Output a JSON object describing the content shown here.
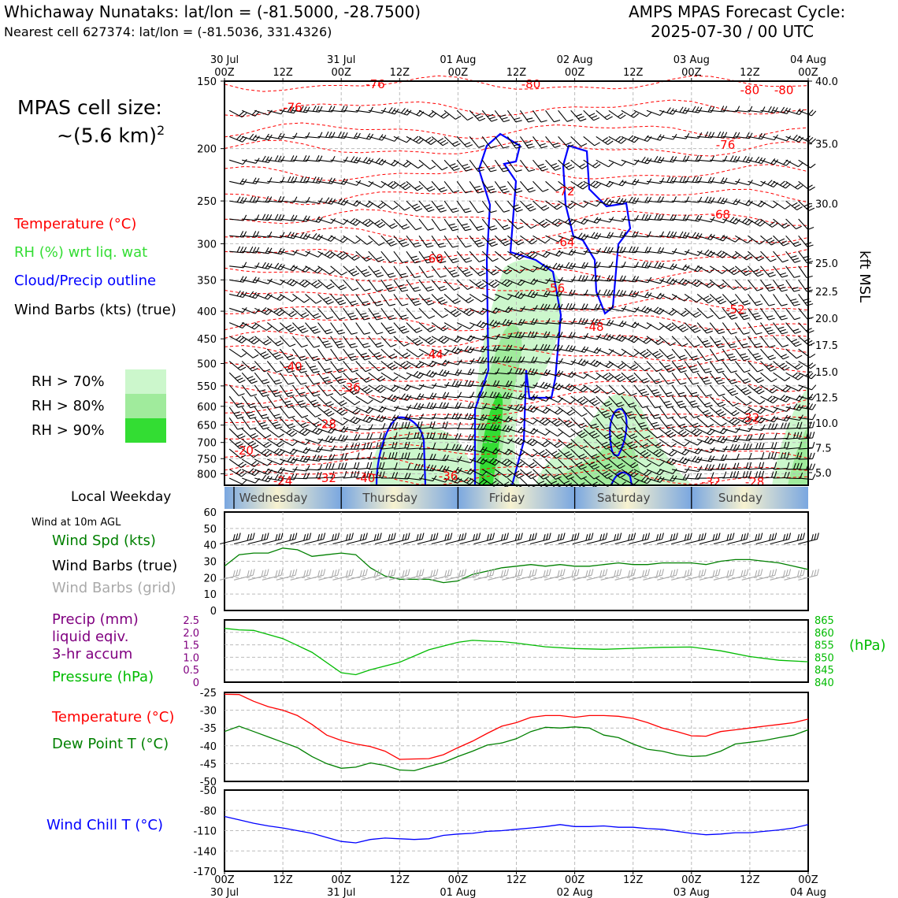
{
  "header": {
    "station": "Whichaway Nunataks: lat/lon = (-81.5000, -28.7500)",
    "nearest": "Nearest cell 627374: lat/lon = (-81.5036, 331.4326)",
    "cycle_line1": "AMPS MPAS Forecast Cycle:",
    "cycle_line2": "2025-07-30 / 00 UTC"
  },
  "legend": {
    "cell_size_line1": "MPAS cell size:",
    "cell_size_line2": "~(5.6 km)",
    "cell_size_exp": "2",
    "temperature": "Temperature (°C)",
    "rh": "RH (%) wrt liq. wat",
    "cloud": "Cloud/Precip outline",
    "barbs": "Wind Barbs (kts) (true)",
    "rh70": "RH > 70%",
    "rh80": "RH > 80%",
    "rh90": "RH > 90%",
    "local_weekday": "Local Weekday",
    "wind10m": "Wind at 10m AGL",
    "wind_spd": "Wind Spd (kts)",
    "wind_barbs_true": "Wind Barbs (true)",
    "wind_barbs_grid": "Wind Barbs (grid)",
    "precip_l1": "Precip (mm)",
    "precip_l2": "liquid eqiv.",
    "precip_l3": "3-hr accum",
    "pressure": "Pressure (hPa)",
    "hpa_unit": "(hPa)",
    "temp2": "Temperature (°C)",
    "dewpoint": "Dew Point T (°C)",
    "windchill": "Wind Chill T (°C)",
    "kft": "kft MSL"
  },
  "colors": {
    "temp": "#ff0000",
    "rh": "#33dd33",
    "cloud": "#0000ff",
    "wind": "#008000",
    "precip": "#800080",
    "pressure": "#00bb00",
    "dew": "#008000",
    "chill": "#0000ff",
    "rh70": "#ccf7cc",
    "rh80": "#a0eb9c",
    "rh90": "#33dd33"
  },
  "time_axis": {
    "hours": [
      0,
      12,
      24,
      36,
      48,
      60,
      72,
      84,
      96,
      108,
      120
    ],
    "top_labels": [
      "00Z",
      "12Z",
      "00Z",
      "12Z",
      "00Z",
      "12Z",
      "00Z",
      "12Z",
      "00Z",
      "12Z",
      "00Z"
    ],
    "date_labels": [
      "30 Jul",
      "",
      "31 Jul",
      "",
      "01 Aug",
      "",
      "02 Aug",
      "",
      "03 Aug",
      "",
      "04 Aug"
    ]
  },
  "weekdays": [
    "Wednesday",
    "Thursday",
    "Friday",
    "Saturday",
    "Sunday"
  ],
  "chart_data": [
    {
      "type": "heatmap",
      "name_shown": "",
      "y_axis_left": "pressure (hPa)",
      "yticks_left": [
        150,
        200,
        250,
        300,
        350,
        400,
        450,
        500,
        550,
        600,
        650,
        700,
        750,
        800
      ],
      "yticks_right": [
        "40.0",
        "35.0",
        "30.0",
        "25.0",
        "22.5",
        "20.0",
        "17.5",
        "15.0",
        "12.5",
        "10.0",
        "7.5",
        "5.0"
      ],
      "yticks_right_pressure": [
        150,
        196,
        253,
        326,
        368,
        412,
        462,
        518,
        578,
        644,
        716,
        796
      ],
      "ylim": [
        840,
        150
      ],
      "temperature_labels": [
        {
          "label": "-76",
          "t": 14,
          "p": 168
        },
        {
          "label": "-76",
          "t": 31,
          "p": 152
        },
        {
          "label": "-80",
          "t": 63,
          "p": 152
        },
        {
          "label": "-80",
          "t": 108,
          "p": 156
        },
        {
          "label": "-80",
          "t": 115,
          "p": 156
        },
        {
          "label": "-76",
          "t": 103,
          "p": 197
        },
        {
          "label": "-72",
          "t": 70,
          "p": 240
        },
        {
          "label": "-68",
          "t": 102,
          "p": 265
        },
        {
          "label": "-64",
          "t": 70,
          "p": 298
        },
        {
          "label": "-60",
          "t": 43,
          "p": 320
        },
        {
          "label": "-56",
          "t": 68,
          "p": 363
        },
        {
          "label": "-52",
          "t": 105,
          "p": 397
        },
        {
          "label": "-48",
          "t": 76,
          "p": 428
        },
        {
          "label": "-44",
          "t": 43,
          "p": 481
        },
        {
          "label": "-40",
          "t": 14,
          "p": 507
        },
        {
          "label": "-36",
          "t": 26,
          "p": 554
        },
        {
          "label": "-32",
          "t": 108,
          "p": 630
        },
        {
          "label": "-28",
          "t": 21,
          "p": 648
        },
        {
          "label": "-20",
          "t": 4,
          "p": 725
        },
        {
          "label": "-24",
          "t": 12,
          "p": 825
        },
        {
          "label": "-32",
          "t": 21,
          "p": 815
        },
        {
          "label": "-40",
          "t": 29,
          "p": 815
        },
        {
          "label": "-36",
          "t": 46,
          "p": 808
        },
        {
          "label": "-32",
          "t": 100,
          "p": 843
        },
        {
          "label": "-28",
          "t": 109,
          "p": 830
        }
      ]
    },
    {
      "type": "line",
      "series": [
        {
          "name": "Wind Spd (kts)",
          "x": [
            0,
            3,
            6,
            9,
            12,
            15,
            18,
            21,
            24,
            27,
            30,
            33,
            36,
            39,
            42,
            45,
            48,
            51,
            54,
            57,
            60,
            63,
            66,
            69,
            72,
            75,
            78,
            81,
            84,
            87,
            90,
            93,
            96,
            99,
            102,
            105,
            108,
            111,
            114,
            117,
            120
          ],
          "values": [
            27,
            34,
            35,
            35,
            38,
            37,
            33,
            34,
            35,
            34,
            26,
            21,
            19,
            19,
            19,
            17,
            18,
            22,
            24,
            26,
            27,
            28,
            27,
            28,
            27,
            27,
            28,
            29,
            28,
            28,
            29,
            29,
            29,
            28,
            30,
            31,
            31,
            30,
            29,
            27,
            25
          ]
        }
      ],
      "barbs_true_speed": 42,
      "barbs_grid_speed": 20,
      "yticks": [
        0,
        10,
        20,
        30,
        40,
        50,
        60
      ],
      "ylim": [
        0,
        60
      ]
    },
    {
      "type": "line",
      "series": [
        {
          "name": "Pressure (hPa)",
          "x": [
            0,
            3,
            6,
            12,
            18,
            24,
            27,
            30,
            36,
            42,
            48,
            51,
            54,
            57,
            60,
            66,
            72,
            78,
            84,
            90,
            96,
            102,
            108,
            114,
            120
          ],
          "values": [
            861.6,
            861,
            860.8,
            857.5,
            852,
            843.8,
            843,
            845,
            848,
            853,
            856,
            856.8,
            856.5,
            856.3,
            855.7,
            854.2,
            853.5,
            853.2,
            853.6,
            854,
            854.1,
            852.6,
            850.3,
            848.8,
            848.2
          ]
        }
      ],
      "precip_yticks": [
        "2.5",
        "2.0",
        "1.5",
        "1.0",
        "0.5",
        "0"
      ],
      "pressure_yticks": [
        "865",
        "860",
        "855",
        "850",
        "845",
        "840"
      ],
      "ylim_pressure": [
        840,
        865
      ]
    },
    {
      "type": "line",
      "series": [
        {
          "name": "Temperature (°C)",
          "x": [
            0,
            3,
            6,
            9,
            12,
            15,
            18,
            21,
            24,
            27,
            30,
            33,
            36,
            39,
            42,
            45,
            48,
            51,
            54,
            57,
            60,
            63,
            66,
            69,
            72,
            75,
            78,
            81,
            84,
            87,
            90,
            93,
            96,
            99,
            102,
            105,
            108,
            111,
            114,
            117,
            120
          ],
          "values": [
            -25.5,
            -25.6,
            -27.5,
            -29,
            -30,
            -31.5,
            -34,
            -37,
            -38.5,
            -39.5,
            -40.2,
            -41.5,
            -43.8,
            -43.7,
            -43.6,
            -42.5,
            -40.5,
            -38.7,
            -36.5,
            -34.5,
            -33.5,
            -32,
            -31.5,
            -31.5,
            -32,
            -31.5,
            -31.5,
            -31.7,
            -32.3,
            -33.5,
            -35,
            -36,
            -37.2,
            -37.3,
            -36,
            -35.5,
            -35,
            -34.5,
            -34,
            -33.5,
            -32.5
          ]
        },
        {
          "name": "Dew Point T (°C)",
          "x": [
            0,
            3,
            6,
            9,
            12,
            15,
            18,
            21,
            24,
            27,
            30,
            33,
            36,
            39,
            42,
            45,
            48,
            51,
            54,
            57,
            60,
            63,
            66,
            69,
            72,
            75,
            78,
            81,
            84,
            87,
            90,
            93,
            96,
            99,
            102,
            105,
            108,
            111,
            114,
            117,
            120
          ],
          "values": [
            -36,
            -34.5,
            -36,
            -37.5,
            -39,
            -40.5,
            -43,
            -45,
            -46.3,
            -46,
            -44.8,
            -45.5,
            -46.8,
            -47,
            -45.8,
            -44.7,
            -43,
            -41.5,
            -39.8,
            -39.2,
            -38,
            -36,
            -34.8,
            -35,
            -34.7,
            -35,
            -37,
            -37.7,
            -39.5,
            -41,
            -41.5,
            -42.5,
            -43,
            -42.8,
            -41.5,
            -39.5,
            -39,
            -38.5,
            -37.7,
            -37,
            -35.5
          ]
        }
      ],
      "yticks": [
        -25,
        -30,
        -35,
        -40,
        -45,
        -50
      ],
      "ylim": [
        -50,
        -25
      ]
    },
    {
      "type": "line",
      "series": [
        {
          "name": "Wind Chill T (°C)",
          "x": [
            0,
            3,
            6,
            9,
            12,
            15,
            18,
            21,
            24,
            27,
            30,
            33,
            36,
            39,
            42,
            45,
            48,
            51,
            54,
            57,
            60,
            63,
            66,
            69,
            72,
            75,
            78,
            81,
            84,
            87,
            90,
            93,
            96,
            99,
            102,
            105,
            108,
            111,
            114,
            117,
            120
          ],
          "values": [
            -89,
            -94,
            -99,
            -103,
            -106,
            -110,
            -114,
            -120,
            -126,
            -128,
            -123,
            -121,
            -122,
            -123,
            -122,
            -117,
            -115,
            -114,
            -111,
            -110,
            -108,
            -106,
            -104,
            -101,
            -104,
            -104,
            -103,
            -105,
            -105,
            -107,
            -108,
            -111,
            -114,
            -116,
            -115,
            -113,
            -113,
            -111,
            -109,
            -106,
            -101
          ]
        }
      ],
      "yticks": [
        -50,
        -80,
        -110,
        -140,
        -170
      ],
      "ylim": [
        -170,
        -50
      ]
    }
  ]
}
